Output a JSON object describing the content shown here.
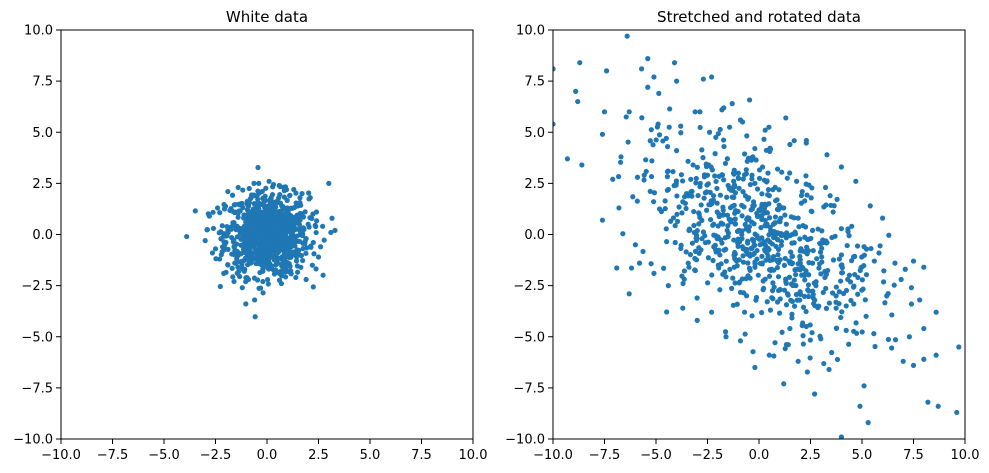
{
  "figure": {
    "background": "#ffffff"
  },
  "chart_data": [
    {
      "type": "scatter",
      "title": "White data",
      "xlabel": "",
      "ylabel": "",
      "xlim": [
        -10,
        10
      ],
      "ylim": [
        -10,
        10
      ],
      "xticks": [
        -10,
        -7.5,
        -5,
        -2.5,
        0,
        2.5,
        5,
        7.5,
        10
      ],
      "yticks": [
        -10,
        -7.5,
        -5,
        -2.5,
        0,
        2.5,
        5,
        7.5,
        10
      ],
      "xtick_labels": [
        "−10.0",
        "−7.5",
        "−5.0",
        "−2.5",
        "0.0",
        "2.5",
        "5.0",
        "7.5",
        "10.0"
      ],
      "ytick_labels": [
        "−10.0",
        "−7.5",
        "−5.0",
        "−2.5",
        "0.0",
        "2.5",
        "5.0",
        "7.5",
        "10.0"
      ],
      "grid": false,
      "color": "#1f77b4",
      "series": [
        {
          "points": [
            [
              -3.9,
              -0.1
            ],
            [
              3.0,
              2.5
            ],
            [
              3.3,
              0.2
            ],
            [
              3.1,
              0.1
            ],
            [
              -0.6,
              -3.2
            ],
            [
              -1.2,
              -2.6
            ],
            [
              -1.6,
              -2.3
            ],
            [
              1.9,
              -2.2
            ],
            [
              2.5,
              -1.1
            ],
            [
              2.6,
              -0.6
            ],
            [
              -3.0,
              -0.3
            ],
            [
              -2.8,
              0.9
            ],
            [
              -2.5,
              -0.7
            ],
            [
              -2.4,
              1.3
            ],
            [
              -1.9,
              2.1
            ],
            [
              -1.4,
              2.3
            ],
            [
              -0.4,
              2.5
            ],
            [
              0.1,
              2.6
            ],
            [
              0.6,
              2.4
            ],
            [
              1.3,
              2.2
            ],
            [
              1.7,
              2.0
            ],
            [
              2.1,
              1.8
            ],
            [
              2.4,
              1.1
            ],
            [
              2.7,
              0.4
            ],
            [
              2.2,
              -1.5
            ],
            [
              1.4,
              -2.1
            ],
            [
              0.7,
              -2.4
            ],
            [
              -0.2,
              -2.3
            ],
            [
              -0.9,
              -2.2
            ],
            [
              -2.1,
              -1.9
            ],
            [
              -2.3,
              -1.2
            ],
            [
              -2.6,
              0.3
            ],
            [
              -1.3,
              0.1
            ],
            [
              0.0,
              0.0
            ],
            [
              0.5,
              -0.5
            ],
            [
              -0.5,
              0.6
            ],
            [
              0.8,
              0.9
            ],
            [
              -0.8,
              -0.9
            ],
            [
              1.2,
              -0.3
            ],
            [
              -1.1,
              0.4
            ],
            [
              0.3,
              1.2
            ],
            [
              -0.3,
              -1.3
            ],
            [
              1.6,
              0.7
            ],
            [
              -1.6,
              -0.6
            ],
            [
              0.9,
              -1.4
            ],
            [
              -0.9,
              1.5
            ],
            [
              1.9,
              -0.2
            ],
            [
              -1.9,
              0.2
            ],
            [
              0.2,
              1.8
            ],
            [
              -0.2,
              -1.8
            ],
            [
              1.5,
              1.4
            ],
            [
              -1.5,
              -1.4
            ],
            [
              2.0,
              0.5
            ],
            [
              -2.0,
              -0.4
            ],
            [
              0.6,
              -1.9
            ],
            [
              -0.6,
              1.9
            ],
            [
              1.1,
              1.9
            ],
            [
              -1.1,
              -1.8
            ],
            [
              0.0,
              -0.6
            ],
            [
              0.4,
              0.3
            ],
            [
              -0.4,
              -0.3
            ],
            [
              0.7,
              0.1
            ],
            [
              -0.7,
              -0.1
            ],
            [
              0.1,
              0.7
            ],
            [
              -0.1,
              -0.7
            ],
            [
              1.0,
              0.4
            ]
          ]
        }
      ]
    },
    {
      "type": "scatter",
      "title": "Stretched and rotated data",
      "xlabel": "",
      "ylabel": "",
      "xlim": [
        -10,
        10
      ],
      "ylim": [
        -10,
        10
      ],
      "xticks": [
        -10,
        -7.5,
        -5,
        -2.5,
        0,
        2.5,
        5,
        7.5,
        10
      ],
      "yticks": [
        -10,
        -7.5,
        -5,
        -2.5,
        0,
        2.5,
        5,
        7.5,
        10
      ],
      "xtick_labels": [
        "−10.0",
        "−7.5",
        "−5.0",
        "−2.5",
        "0.0",
        "2.5",
        "5.0",
        "7.5",
        "10.0"
      ],
      "ytick_labels": [
        "−10.0",
        "−7.5",
        "−5.0",
        "−2.5",
        "0.0",
        "2.5",
        "5.0",
        "7.5",
        "10.0"
      ],
      "grid": false,
      "color": "#1f77b4",
      "series": [
        {
          "points": [
            [
              -10.0,
              8.1
            ],
            [
              -10.0,
              5.4
            ],
            [
              -9.3,
              3.7
            ],
            [
              -8.7,
              8.4
            ],
            [
              -8.9,
              7.0
            ],
            [
              -8.8,
              6.5
            ],
            [
              -8.6,
              3.4
            ],
            [
              -7.4,
              8.0
            ],
            [
              -7.5,
              6.0
            ],
            [
              -7.6,
              4.9
            ],
            [
              -7.6,
              0.7
            ],
            [
              -6.4,
              9.7
            ],
            [
              -6.3,
              6.0
            ],
            [
              -6.3,
              -2.9
            ],
            [
              -5.7,
              8.1
            ],
            [
              -5.4,
              8.6
            ],
            [
              -5.1,
              7.7
            ],
            [
              -5.4,
              7.2
            ],
            [
              -4.9,
              5.4
            ],
            [
              -4.1,
              8.4
            ],
            [
              -4.0,
              7.5
            ],
            [
              -6.0,
              -0.5
            ],
            [
              -5.8,
              -1.4
            ],
            [
              -6.8,
              1.3
            ],
            [
              -7.1,
              2.7
            ],
            [
              -2.7,
              7.6
            ],
            [
              -2.3,
              7.7
            ],
            [
              -1.8,
              6.1
            ],
            [
              -1.3,
              6.4
            ],
            [
              -0.9,
              5.6
            ],
            [
              0.3,
              5.1
            ],
            [
              1.3,
              5.7
            ],
            [
              1.5,
              4.4
            ],
            [
              -3.2,
              3.4
            ],
            [
              -2.5,
              2.9
            ],
            [
              -1.5,
              2.4
            ],
            [
              -0.5,
              1.8
            ],
            [
              0.0,
              1.2
            ],
            [
              0.7,
              0.5
            ],
            [
              1.3,
              -0.1
            ],
            [
              2.0,
              -0.8
            ],
            [
              2.6,
              -1.4
            ],
            [
              3.2,
              -2.1
            ],
            [
              3.9,
              -2.8
            ],
            [
              4.6,
              -3.4
            ],
            [
              5.2,
              -4.0
            ],
            [
              -4.4,
              2.2
            ],
            [
              -3.7,
              1.6
            ],
            [
              -2.9,
              1.0
            ],
            [
              -2.2,
              0.5
            ],
            [
              -1.5,
              -0.1
            ],
            [
              -0.8,
              -0.6
            ],
            [
              -0.1,
              -1.2
            ],
            [
              0.6,
              -1.7
            ],
            [
              1.3,
              -2.3
            ],
            [
              2.0,
              -2.8
            ],
            [
              -1.0,
              3.0
            ],
            [
              -0.2,
              2.5
            ],
            [
              0.5,
              1.9
            ],
            [
              1.2,
              1.3
            ],
            [
              1.9,
              0.8
            ],
            [
              2.6,
              0.2
            ],
            [
              3.3,
              -0.4
            ],
            [
              4.0,
              -1.0
            ],
            [
              -3.4,
              0.2
            ],
            [
              -2.6,
              -0.4
            ],
            [
              -1.9,
              -1.0
            ],
            [
              -1.2,
              -1.6
            ],
            [
              -0.5,
              -2.1
            ],
            [
              0.2,
              -2.7
            ],
            [
              0.9,
              -3.3
            ],
            [
              1.6,
              -3.9
            ],
            [
              2.3,
              -4.5
            ],
            [
              3.0,
              -5.1
            ],
            [
              4.5,
              0.4
            ],
            [
              5.1,
              -0.6
            ],
            [
              5.6,
              -1.3
            ],
            [
              6.0,
              0.8
            ],
            [
              6.6,
              -1.4
            ],
            [
              7.1,
              -1.7
            ],
            [
              7.5,
              -1.3
            ],
            [
              8.0,
              -1.6
            ],
            [
              6.9,
              -2.2
            ],
            [
              7.4,
              -2.6
            ],
            [
              7.4,
              -3.4
            ],
            [
              7.8,
              -3.2
            ],
            [
              7.3,
              -5.0
            ],
            [
              7.0,
              -6.2
            ],
            [
              7.5,
              -6.4
            ],
            [
              8.0,
              -6.1
            ],
            [
              8.6,
              -3.8
            ],
            [
              8.6,
              -5.9
            ],
            [
              8.0,
              -4.6
            ],
            [
              9.7,
              -5.5
            ],
            [
              8.2,
              -8.2
            ],
            [
              8.7,
              -8.4
            ],
            [
              9.6,
              -8.7
            ],
            [
              5.1,
              -7.4
            ],
            [
              4.9,
              -8.4
            ],
            [
              5.3,
              -9.2
            ],
            [
              4.0,
              -9.9
            ],
            [
              3.4,
              -6.6
            ],
            [
              2.7,
              -7.8
            ],
            [
              1.9,
              -6.2
            ],
            [
              1.2,
              -7.3
            ],
            [
              0.5,
              -5.9
            ],
            [
              -0.2,
              -6.5
            ],
            [
              -0.9,
              -5.2
            ],
            [
              -1.6,
              -5.0
            ],
            [
              -2.3,
              -3.8
            ],
            [
              -3.0,
              -4.2
            ],
            [
              -3.7,
              -3.6
            ],
            [
              -4.4,
              -2.5
            ],
            [
              -5.1,
              -1.9
            ],
            [
              3.3,
              3.9
            ],
            [
              4.0,
              3.3
            ],
            [
              4.7,
              2.6
            ],
            [
              5.4,
              1.4
            ],
            [
              2.3,
              4.6
            ],
            [
              -6.7,
              3.8
            ],
            [
              -5.9,
              2.8
            ],
            [
              -5.2,
              3.6
            ],
            [
              -4.5,
              4.7
            ],
            [
              -3.8,
              5.3
            ],
            [
              -3.1,
              6.0
            ],
            [
              -2.4,
              5.0
            ],
            [
              -1.7,
              4.3
            ],
            [
              -0.3,
              3.8
            ],
            [
              0.9,
              3.2
            ],
            [
              2.1,
              2.1
            ],
            [
              3.6,
              1.1
            ],
            [
              4.8,
              -2.1
            ],
            [
              6.2,
              -3.0
            ],
            [
              2.9,
              -3.5
            ],
            [
              1.5,
              -4.6
            ],
            [
              -0.7,
              -3.8
            ],
            [
              -1.9,
              -2.7
            ],
            [
              -3.4,
              -1.6
            ]
          ]
        }
      ]
    }
  ]
}
